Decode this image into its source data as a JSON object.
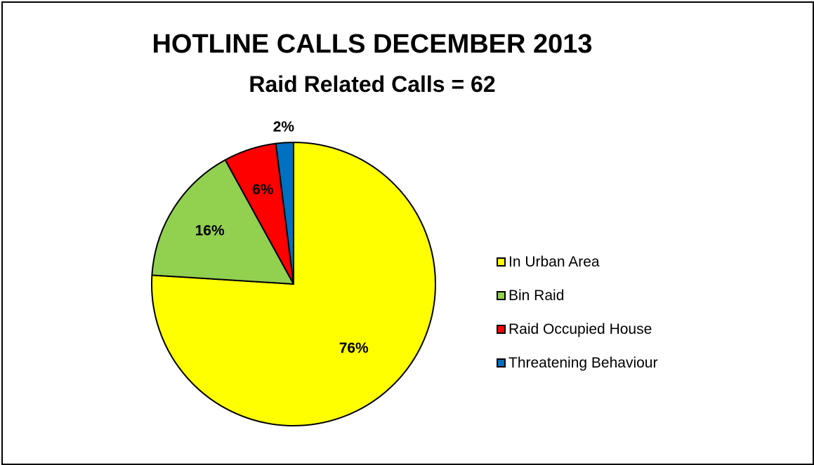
{
  "chart_data": {
    "type": "pie",
    "title": "HOTLINE CALLS DECEMBER 2013",
    "subtitle": "Raid Related Calls = 62",
    "categories": [
      "In Urban Area",
      "Bin Raid",
      "Raid Occupied House",
      "Threatening Behaviour"
    ],
    "values": [
      76,
      16,
      6,
      2
    ],
    "value_labels": [
      "76%",
      "16%",
      "6%",
      "2%"
    ],
    "colors": [
      "#FFFF00",
      "#92D050",
      "#FF0000",
      "#0070C0"
    ],
    "start_angle": "12 o'clock",
    "direction": "clockwise",
    "legend_position": "right"
  }
}
